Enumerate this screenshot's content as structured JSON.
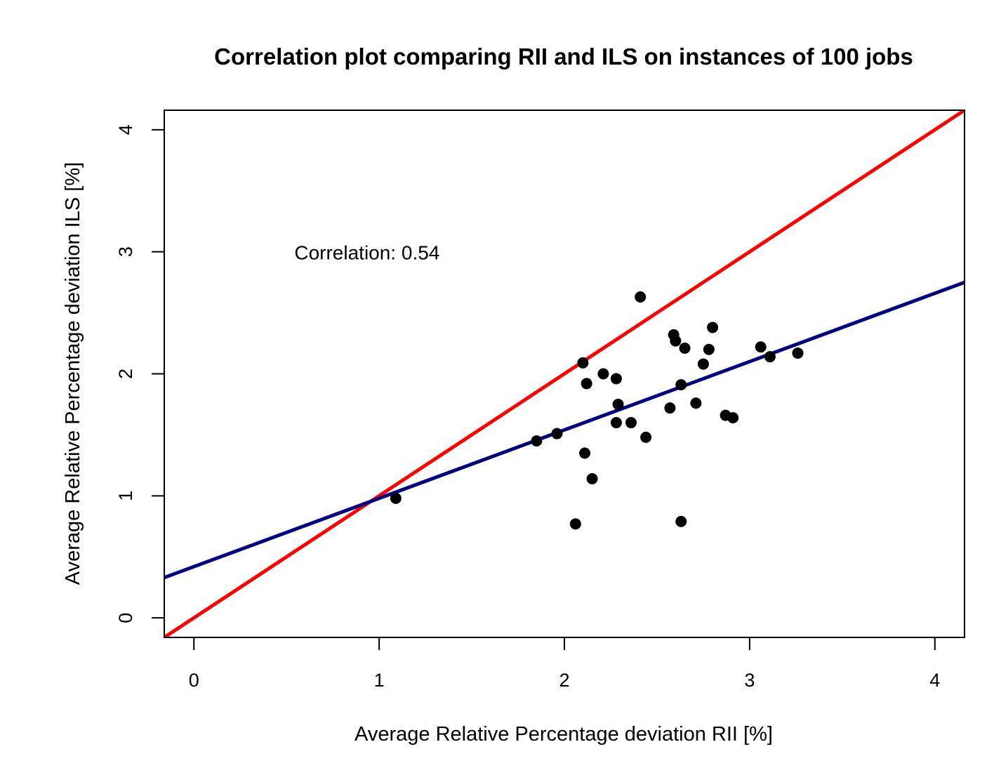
{
  "chart_data": {
    "type": "scatter",
    "title": "Correlation plot comparing RII and ILS on instances of 100 jobs",
    "xlabel": "Average Relative Percentage deviation RII [%]",
    "ylabel": "Average Relative Percentage deviation ILS [%]",
    "xlim": [
      -0.16,
      4.16
    ],
    "ylim": [
      -0.16,
      4.16
    ],
    "xticks": [
      "0",
      "1",
      "2",
      "3",
      "4"
    ],
    "yticks": [
      "0",
      "1",
      "2",
      "3",
      "4"
    ],
    "annotation": {
      "text": "Correlation: 0.54",
      "x": 0.55,
      "y": 3.0
    },
    "points": [
      {
        "x": 1.09,
        "y": 0.98
      },
      {
        "x": 1.85,
        "y": 1.45
      },
      {
        "x": 1.96,
        "y": 1.51
      },
      {
        "x": 2.06,
        "y": 0.77
      },
      {
        "x": 2.1,
        "y": 2.09
      },
      {
        "x": 2.11,
        "y": 1.35
      },
      {
        "x": 2.12,
        "y": 1.92
      },
      {
        "x": 2.15,
        "y": 1.14
      },
      {
        "x": 2.21,
        "y": 2.0
      },
      {
        "x": 2.28,
        "y": 1.96
      },
      {
        "x": 2.28,
        "y": 1.6
      },
      {
        "x": 2.29,
        "y": 1.75
      },
      {
        "x": 2.36,
        "y": 1.6
      },
      {
        "x": 2.41,
        "y": 2.63
      },
      {
        "x": 2.44,
        "y": 1.48
      },
      {
        "x": 2.57,
        "y": 1.72
      },
      {
        "x": 2.59,
        "y": 2.32
      },
      {
        "x": 2.6,
        "y": 2.27
      },
      {
        "x": 2.63,
        "y": 1.91
      },
      {
        "x": 2.63,
        "y": 0.79
      },
      {
        "x": 2.65,
        "y": 2.21
      },
      {
        "x": 2.71,
        "y": 1.76
      },
      {
        "x": 2.75,
        "y": 2.08
      },
      {
        "x": 2.78,
        "y": 2.2
      },
      {
        "x": 2.8,
        "y": 2.38
      },
      {
        "x": 2.87,
        "y": 1.66
      },
      {
        "x": 2.91,
        "y": 1.64
      },
      {
        "x": 3.06,
        "y": 2.22
      },
      {
        "x": 3.11,
        "y": 2.14
      },
      {
        "x": 3.26,
        "y": 2.17
      }
    ],
    "lines": [
      {
        "kind": "identity",
        "color": "#ff0000",
        "x1": -0.16,
        "y1": -0.16,
        "x2": 4.16,
        "y2": 4.16
      },
      {
        "kind": "regression",
        "color": "#000080",
        "intercept": 0.42,
        "slope": 0.56
      }
    ],
    "point_color": "#000000",
    "grid": false
  }
}
